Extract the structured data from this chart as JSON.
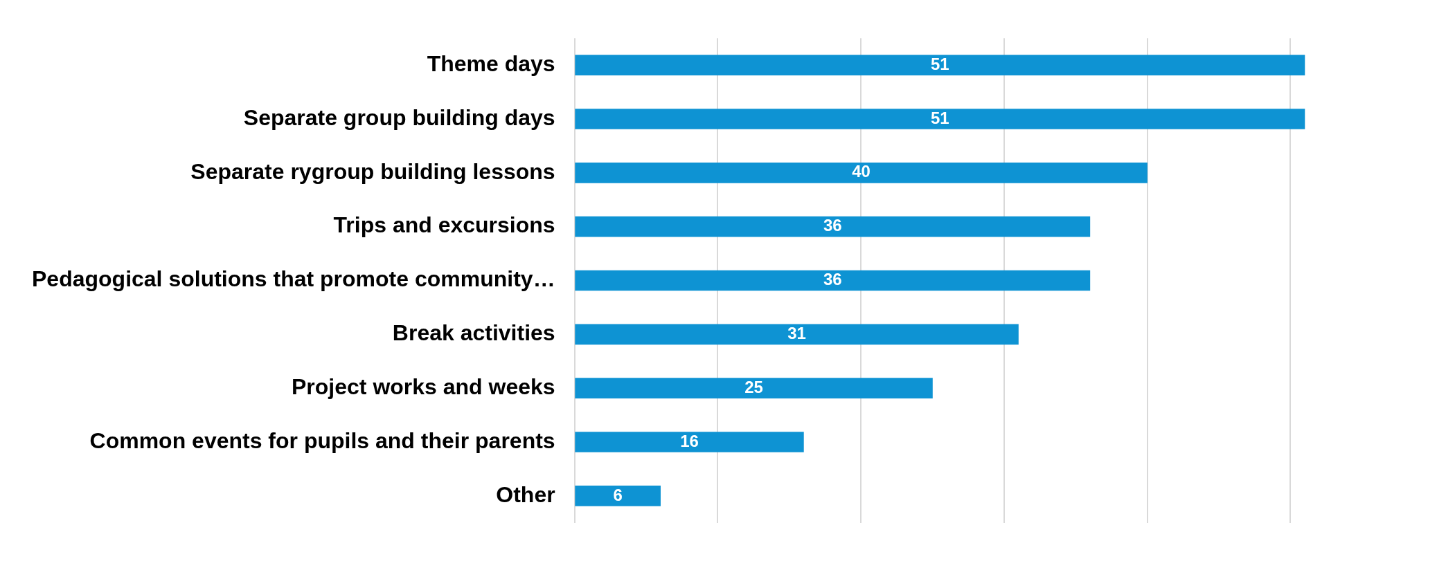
{
  "chart_data": {
    "type": "bar",
    "orientation": "horizontal",
    "categories": [
      "Theme days",
      "Separate group building days",
      "Separate rygroup building lessons",
      "Trips and excursions",
      "Pedagogical solutions that promote community…",
      "Break activities",
      "Project works and weeks",
      "Common events for pupils and their parents",
      "Other"
    ],
    "values": [
      51,
      51,
      40,
      36,
      36,
      31,
      25,
      16,
      6
    ],
    "color": "#0e93d3",
    "xticks": [
      {
        "value": 0,
        "label": null
      },
      {
        "value": 10,
        "label": null
      },
      {
        "value": 20,
        "label": null
      },
      {
        "value": 30,
        "label": null
      },
      {
        "value": 40,
        "label": null
      },
      {
        "value": 50,
        "label": null
      }
    ],
    "tick_labels": "y",
    "grid": "x",
    "data_labels": true
  }
}
